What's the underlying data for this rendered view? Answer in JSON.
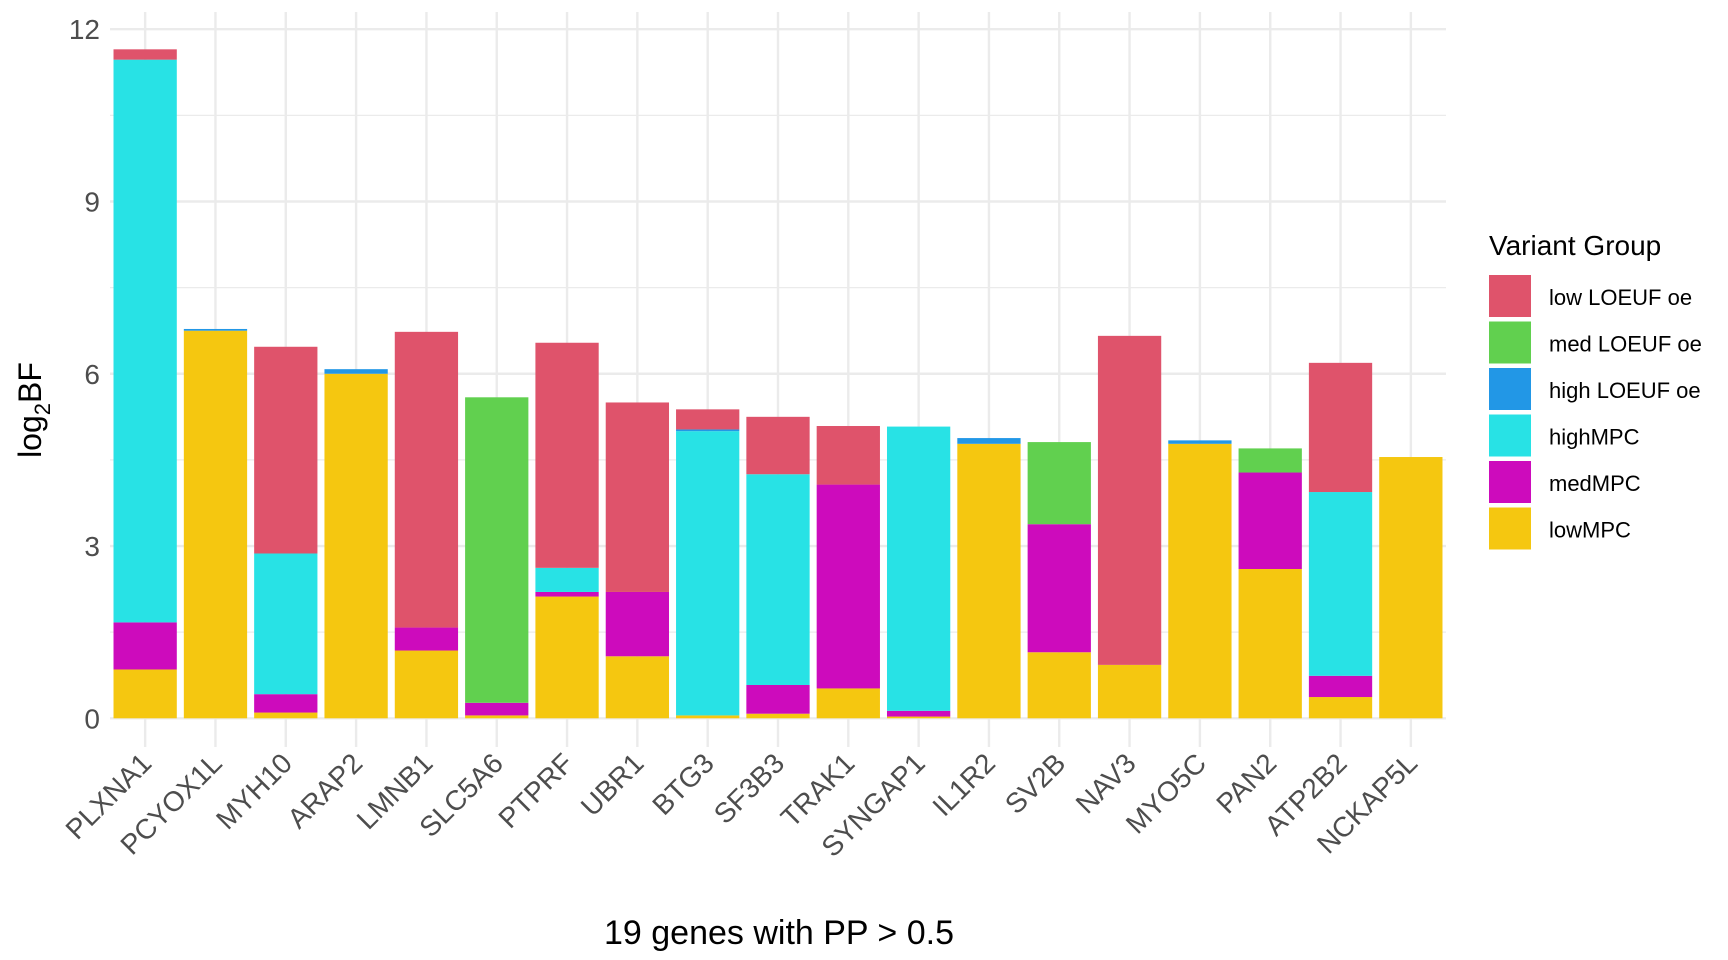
{
  "chart_data": {
    "type": "bar",
    "stacked": true,
    "xlabel": "19 genes with PP > 0.5",
    "ylabel": "log",
    "ylabel_sub": "2",
    "ylabel_suffix": "BF",
    "ylim": [
      -0.5,
      12.3
    ],
    "yticks": [
      0,
      3,
      6,
      9,
      12
    ],
    "grid": true,
    "legend_position": "right",
    "legend_title": "Variant Group",
    "categories": [
      "PLXNA1",
      "PCYOX1L",
      "MYH10",
      "ARAP2",
      "LMNB1",
      "SLC5A6",
      "PTPRF",
      "UBR1",
      "BTG3",
      "SF3B3",
      "TRAK1",
      "SYNGAP1",
      "IL1R2",
      "SV2B",
      "NAV3",
      "MYO5C",
      "PAN2",
      "ATP2B2",
      "NCKAP5L"
    ],
    "legend_order": [
      "low LOEUF oe",
      "med LOEUF oe",
      "high LOEUF oe",
      "highMPC",
      "medMPC",
      "lowMPC"
    ],
    "stack_order_bottom_to_top": [
      "lowMPC",
      "medMPC",
      "highMPC",
      "high LOEUF oe",
      "med LOEUF oe",
      "low LOEUF oe"
    ],
    "series": [
      {
        "name": "lowMPC",
        "color": "#F5C710",
        "values": [
          0.85,
          6.75,
          0.1,
          6.0,
          1.18,
          0.05,
          2.12,
          1.08,
          0.05,
          0.08,
          0.52,
          0.03,
          4.78,
          1.15,
          0.93,
          4.78,
          2.6,
          0.37,
          4.55
        ]
      },
      {
        "name": "medMPC",
        "color": "#CD0BBC",
        "values": [
          0.82,
          0,
          0.32,
          0,
          0.4,
          0.22,
          0.08,
          1.12,
          0,
          0.5,
          3.55,
          0.1,
          0,
          2.23,
          0,
          0,
          1.68,
          0.37,
          0
        ]
      },
      {
        "name": "highMPC",
        "color": "#28E2E5",
        "values": [
          9.8,
          0,
          2.45,
          0,
          0,
          0,
          0.42,
          0,
          4.95,
          3.67,
          0,
          4.95,
          0,
          0,
          0,
          0,
          0,
          3.2,
          0
        ]
      },
      {
        "name": "high LOEUF oe",
        "color": "#2297E6",
        "values": [
          0,
          0.03,
          0,
          0.08,
          0,
          0,
          0,
          0,
          0.03,
          0,
          0,
          0,
          0.1,
          0,
          0,
          0.06,
          0,
          0,
          0
        ]
      },
      {
        "name": "med LOEUF oe",
        "color": "#61D04F",
        "values": [
          0,
          0,
          0,
          0,
          0,
          5.32,
          0,
          0,
          0,
          0,
          0,
          0,
          0,
          1.43,
          0,
          0,
          0.42,
          0,
          0
        ]
      },
      {
        "name": "low LOEUF oe",
        "color": "#DF536B",
        "values": [
          0.18,
          0,
          3.6,
          0,
          5.15,
          0,
          3.92,
          3.3,
          0.35,
          1.0,
          1.02,
          0,
          0,
          0,
          5.73,
          0,
          0,
          2.25,
          0
        ]
      }
    ]
  }
}
